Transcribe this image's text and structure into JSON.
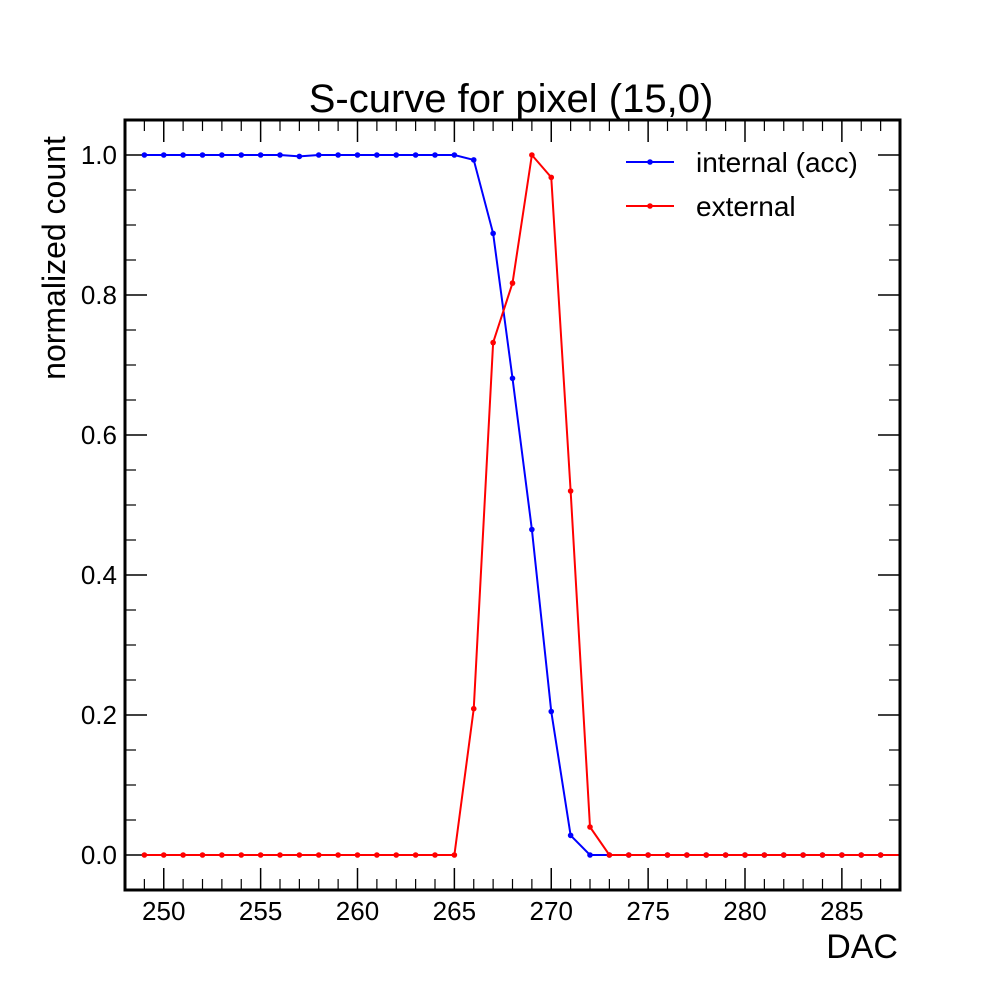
{
  "chart_data": {
    "type": "line",
    "title": "S-curve for pixel (15,0)",
    "xlabel": "DAC",
    "ylabel": "normalized count",
    "xlim": [
      248,
      288
    ],
    "ylim": [
      -0.05,
      1.05
    ],
    "x_ticks": [
      250,
      255,
      260,
      265,
      270,
      275,
      280,
      285
    ],
    "y_ticks": [
      0.0,
      0.2,
      0.4,
      0.6,
      0.8,
      1.0
    ],
    "x_tick_labels": [
      "250",
      "255",
      "260",
      "265",
      "270",
      "275",
      "280",
      "285"
    ],
    "y_tick_labels": [
      "0.0",
      "0.2",
      "0.4",
      "0.6",
      "0.8",
      "1.0"
    ],
    "grid": false,
    "legend_position": "top-right",
    "x": [
      249,
      250,
      251,
      252,
      253,
      254,
      255,
      256,
      257,
      258,
      259,
      260,
      261,
      262,
      263,
      264,
      265,
      266,
      267,
      268,
      269,
      270,
      271,
      272,
      273,
      274,
      275,
      276,
      277,
      278,
      279,
      280,
      281,
      282,
      283,
      284,
      285,
      286,
      287
    ],
    "series": [
      {
        "name": "internal (acc)",
        "color": "#0000ff",
        "values": [
          1.0,
          1.0,
          1.0,
          1.0,
          1.0,
          1.0,
          1.0,
          1.0,
          0.998,
          1.0,
          1.0,
          1.0,
          1.0,
          1.0,
          1.0,
          1.0,
          1.0,
          0.993,
          0.888,
          0.681,
          0.465,
          0.205,
          0.028,
          0.0,
          0.0,
          0.0,
          0.0,
          0.0,
          0.0,
          0.0,
          0.0,
          0.0,
          0.0,
          0.0,
          0.0,
          0.0,
          0.0,
          0.0,
          0.0
        ]
      },
      {
        "name": "external",
        "color": "#ff0000",
        "values": [
          0.0,
          0.0,
          0.0,
          0.0,
          0.0,
          0.0,
          0.0,
          0.0,
          0.0,
          0.0,
          0.0,
          0.0,
          0.0,
          0.0,
          0.0,
          0.0,
          0.0,
          0.209,
          0.732,
          0.817,
          1.0,
          0.968,
          0.52,
          0.04,
          0.0,
          0.0,
          0.0,
          0.0,
          0.0,
          0.0,
          0.0,
          0.0,
          0.0,
          0.0,
          0.0,
          0.0,
          0.0,
          0.0,
          0.0
        ]
      }
    ]
  }
}
